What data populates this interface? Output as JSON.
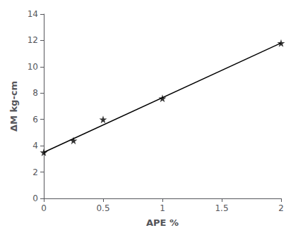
{
  "chart_data": {
    "type": "scatter",
    "xlabel": "APE %",
    "ylabel": "ΔM kg-cm",
    "xlim": [
      0,
      2.0
    ],
    "ylim": [
      0,
      14
    ],
    "xticks": [
      0,
      0.5,
      1,
      1.5,
      2
    ],
    "yticks": [
      0,
      2,
      4,
      6,
      8,
      10,
      12,
      14
    ],
    "grid": false,
    "series": [
      {
        "type": "line",
        "x": [
          0,
          2.0
        ],
        "values": [
          3.5,
          11.8
        ],
        "color": "#000000",
        "line_style": "solid"
      },
      {
        "type": "scatter",
        "x": [
          0,
          0.25,
          0.5,
          1.0,
          2.0
        ],
        "values": [
          3.5,
          4.4,
          6.0,
          7.6,
          11.8
        ],
        "color": "#000000",
        "marker": "star"
      }
    ]
  }
}
